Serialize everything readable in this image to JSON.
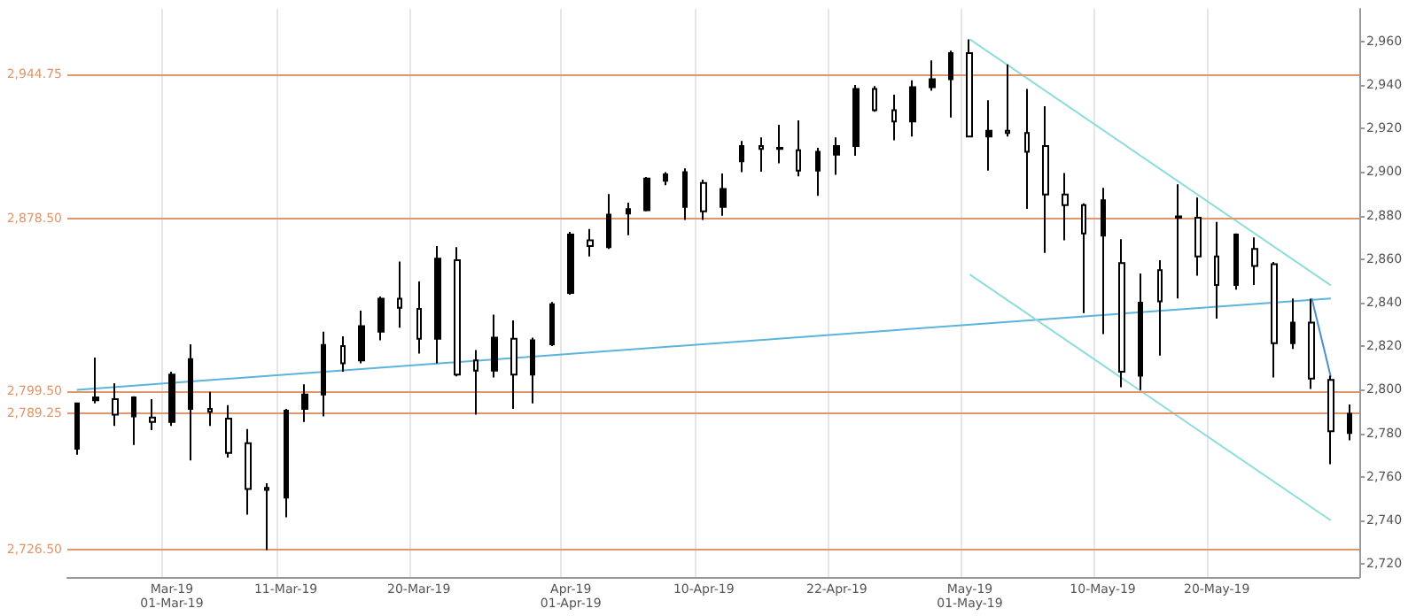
{
  "chart_data": {
    "type": "candlestick",
    "color": "#000000",
    "grid": "x",
    "categories": [
      null,
      null,
      null,
      null,
      null,
      "Mar-19\n01-Mar-19",
      null,
      null,
      null,
      null,
      null,
      "11-Mar-19",
      null,
      null,
      null,
      null,
      null,
      null,
      "20-Mar-19",
      null,
      null,
      null,
      null,
      null,
      null,
      null,
      "Apr-19\n01-Apr-19",
      null,
      null,
      null,
      null,
      null,
      null,
      "10-Apr-19",
      null,
      null,
      null,
      null,
      null,
      null,
      "22-Apr-19",
      null,
      null,
      null,
      null,
      null,
      null,
      "May-19\n01-May-19",
      null,
      null,
      null,
      null,
      null,
      null,
      "10-May-19",
      null,
      null,
      null,
      null,
      null,
      "20-May-19",
      null,
      null,
      null,
      null,
      null,
      null,
      null
    ],
    "ohlc": [
      [
        2772.9,
        2793.8,
        2770.2,
        2793.8
      ],
      [
        2795.2,
        2814.8,
        2793.8,
        2796.5
      ],
      [
        2795.7,
        2803.0,
        2783.4,
        2788.6
      ],
      [
        2787.8,
        2797.0,
        2774.7,
        2796.5
      ],
      [
        2787.3,
        2795.7,
        2781.5,
        2785.2
      ],
      [
        2785.2,
        2808.3,
        2783.4,
        2807.0
      ],
      [
        2791.2,
        2820.9,
        2767.6,
        2814.1
      ],
      [
        2791.2,
        2799.1,
        2783.4,
        2789.9
      ],
      [
        2786.8,
        2793.0,
        2768.9,
        2771.0
      ],
      [
        2775.5,
        2782.0,
        2742.7,
        2754.5
      ],
      [
        2755.0,
        2757.1,
        2726.4,
        2754.0
      ],
      [
        2750.5,
        2791.2,
        2741.4,
        2790.4
      ],
      [
        2791.2,
        2802.5,
        2785.2,
        2797.8
      ],
      [
        2797.8,
        2826.7,
        2787.8,
        2820.6
      ],
      [
        2820.1,
        2824.6,
        2808.3,
        2812.2
      ],
      [
        2813.5,
        2836.4,
        2812.2,
        2829.3
      ],
      [
        2826.7,
        2842.9,
        2822.7,
        2841.9
      ],
      [
        2841.9,
        2858.9,
        2828.5,
        2837.7
      ],
      [
        2837.2,
        2849.8,
        2816.7,
        2823.5
      ],
      [
        2823.5,
        2866.0,
        2812.2,
        2860.3
      ],
      [
        2859.5,
        2865.5,
        2806.2,
        2807.0
      ],
      [
        2813.5,
        2818.3,
        2788.6,
        2808.8
      ],
      [
        2808.8,
        2834.5,
        2805.7,
        2824.0
      ],
      [
        2823.5,
        2831.9,
        2791.2,
        2807.0
      ],
      [
        2807.0,
        2824.0,
        2793.8,
        2822.7
      ],
      [
        2820.9,
        2840.3,
        2820.1,
        2839.3
      ],
      [
        2844.5,
        2872.6,
        2843.7,
        2871.3
      ],
      [
        2868.7,
        2873.9,
        2861.3,
        2866.0
      ],
      [
        2865.5,
        2889.9,
        2864.7,
        2880.5
      ],
      [
        2881.0,
        2886.0,
        2871.0,
        2883.0
      ],
      [
        2882.5,
        2897.8,
        2882.0,
        2897.0
      ],
      [
        2896.0,
        2900.0,
        2894.0,
        2899.0
      ],
      [
        2884.0,
        2901.7,
        2878.0,
        2900.0
      ],
      [
        2895.0,
        2896.5,
        2878.0,
        2882.0
      ],
      [
        2884.0,
        2899.4,
        2880.0,
        2892.3
      ],
      [
        2905.0,
        2914.3,
        2900.0,
        2912.0
      ],
      [
        2912.0,
        2915.9,
        2900.2,
        2910.7
      ],
      [
        2910.7,
        2921.7,
        2904.1,
        2911.2
      ],
      [
        2910.1,
        2923.8,
        2898.1,
        2900.7
      ],
      [
        2900.7,
        2911.2,
        2889.1,
        2909.3
      ],
      [
        2908.0,
        2915.9,
        2898.8,
        2912.0
      ],
      [
        2912.0,
        2940.0,
        2907.5,
        2938.2
      ],
      [
        2938.2,
        2939.5,
        2927.7,
        2928.5
      ],
      [
        2928.5,
        2935.6,
        2914.6,
        2923.3
      ],
      [
        2923.3,
        2942.2,
        2916.4,
        2939.0
      ],
      [
        2939.0,
        2951.3,
        2937.4,
        2942.7
      ],
      [
        2942.7,
        2955.8,
        2925.1,
        2954.7
      ],
      [
        2954.7,
        2961.0,
        2915.9,
        2916.4
      ],
      [
        2916.4,
        2933.0,
        2900.7,
        2919.0
      ],
      [
        2919.0,
        2949.5,
        2916.4,
        2918.0
      ],
      [
        2918.0,
        2938.2,
        2883.1,
        2909.3
      ],
      [
        2912.0,
        2930.3,
        2862.9,
        2889.7
      ],
      [
        2889.7,
        2899.6,
        2868.7,
        2884.9
      ],
      [
        2884.9,
        2885.7,
        2835.3,
        2871.8
      ],
      [
        2870.8,
        2892.8,
        2825.6,
        2887.1
      ],
      [
        2858.2,
        2869.2,
        2801.2,
        2808.3
      ],
      [
        2806.5,
        2853.4,
        2799.9,
        2840.0
      ],
      [
        2855.0,
        2859.5,
        2815.7,
        2840.6
      ],
      [
        2879.7,
        2894.4,
        2842.0,
        2879.1
      ],
      [
        2879.1,
        2888.3,
        2852.4,
        2861.3
      ],
      [
        2861.3,
        2877.1,
        2832.7,
        2848.2
      ],
      [
        2848.2,
        2871.8,
        2846.0,
        2871.3
      ],
      [
        2864.7,
        2870.0,
        2848.2,
        2856.9
      ],
      [
        2857.7,
        2858.7,
        2805.7,
        2821.4
      ],
      [
        2821.4,
        2842.0,
        2818.8,
        2830.9
      ],
      [
        2830.9,
        2841.9,
        2800.4,
        2805.2
      ],
      [
        2804.6,
        2806.5,
        2765.8,
        2781.0
      ],
      [
        2780.2,
        2793.3,
        2776.8,
        2789.0
      ]
    ],
    "series": [
      {
        "type": "line",
        "color": "#5ab4dc",
        "values": [
          2800,
          null,
          null,
          null,
          null,
          null,
          null,
          null,
          null,
          null,
          null,
          null,
          null,
          null,
          null,
          null,
          null,
          null,
          null,
          null,
          null,
          null,
          null,
          null,
          null,
          null,
          null,
          null,
          null,
          null,
          null,
          null,
          null,
          null,
          null,
          null,
          null,
          null,
          null,
          null,
          null,
          null,
          null,
          null,
          null,
          null,
          null,
          null,
          null,
          null,
          null,
          null,
          null,
          null,
          null,
          null,
          null,
          null,
          null,
          null,
          null,
          null,
          null,
          null,
          null,
          null,
          2842,
          null
        ]
      },
      {
        "type": "line",
        "color": "#8fdcdc",
        "values": [
          null,
          null,
          null,
          null,
          null,
          null,
          null,
          null,
          null,
          null,
          null,
          null,
          null,
          null,
          null,
          null,
          null,
          null,
          null,
          null,
          null,
          null,
          null,
          null,
          null,
          null,
          null,
          null,
          null,
          null,
          null,
          null,
          null,
          null,
          null,
          null,
          null,
          null,
          null,
          null,
          null,
          null,
          null,
          null,
          null,
          null,
          null,
          2961,
          null,
          null,
          null,
          null,
          null,
          null,
          null,
          null,
          null,
          null,
          null,
          null,
          null,
          null,
          null,
          null,
          null,
          null,
          2848,
          null
        ]
      },
      {
        "type": "line",
        "color": "#8fdcdc",
        "values": [
          null,
          null,
          null,
          null,
          null,
          null,
          null,
          null,
          null,
          null,
          null,
          null,
          null,
          null,
          null,
          null,
          null,
          null,
          null,
          null,
          null,
          null,
          null,
          null,
          null,
          null,
          null,
          null,
          null,
          null,
          null,
          null,
          null,
          null,
          null,
          null,
          null,
          null,
          null,
          null,
          null,
          null,
          null,
          null,
          null,
          null,
          null,
          2853,
          null,
          null,
          null,
          null,
          null,
          null,
          null,
          null,
          null,
          null,
          null,
          null,
          null,
          null,
          null,
          null,
          null,
          null,
          2740,
          null
        ]
      },
      {
        "type": "line",
        "color": "#4a90d0",
        "values": [
          null,
          null,
          null,
          null,
          null,
          null,
          null,
          null,
          null,
          null,
          null,
          null,
          null,
          null,
          null,
          null,
          null,
          null,
          null,
          null,
          null,
          null,
          null,
          null,
          null,
          null,
          null,
          null,
          null,
          null,
          null,
          null,
          null,
          null,
          null,
          null,
          null,
          null,
          null,
          null,
          null,
          null,
          null,
          null,
          null,
          null,
          null,
          null,
          null,
          null,
          null,
          null,
          null,
          null,
          null,
          null,
          null,
          null,
          null,
          null,
          null,
          null,
          null,
          null,
          null,
          2842,
          2806,
          null
        ]
      }
    ],
    "ylim": [
      2714,
      2975
    ],
    "yticks": [
      {
        "value": 2720,
        "label": "2,720"
      },
      {
        "value": 2740,
        "label": "2,740"
      },
      {
        "value": 2760,
        "label": "2,760"
      },
      {
        "value": 2780,
        "label": "2,780"
      },
      {
        "value": 2800,
        "label": "2,800"
      },
      {
        "value": 2820,
        "label": "2,820"
      },
      {
        "value": 2840,
        "label": "2,840"
      },
      {
        "value": 2860,
        "label": "2,860"
      },
      {
        "value": 2880,
        "label": "2,880"
      },
      {
        "value": 2900,
        "label": "2,900"
      },
      {
        "value": 2920,
        "label": "2,920"
      },
      {
        "value": 2940,
        "label": "2,940"
      },
      {
        "value": 2960,
        "label": "2,960"
      }
    ],
    "ref_lines": [
      {
        "axis": "y",
        "value": 2944.75,
        "label": "2,944.75",
        "color": "#e0956a"
      },
      {
        "axis": "y",
        "value": 2878.5,
        "label": "2,878.50",
        "color": "#e0956a"
      },
      {
        "axis": "y",
        "value": 2799.5,
        "label": "2,799.50",
        "color": "#e0956a"
      },
      {
        "axis": "y",
        "value": 2789.25,
        "label": "2,789.25",
        "color": "#e0956a"
      },
      {
        "axis": "y",
        "value": 2726.5,
        "label": "2,726.50",
        "color": "#e0956a"
      }
    ]
  }
}
